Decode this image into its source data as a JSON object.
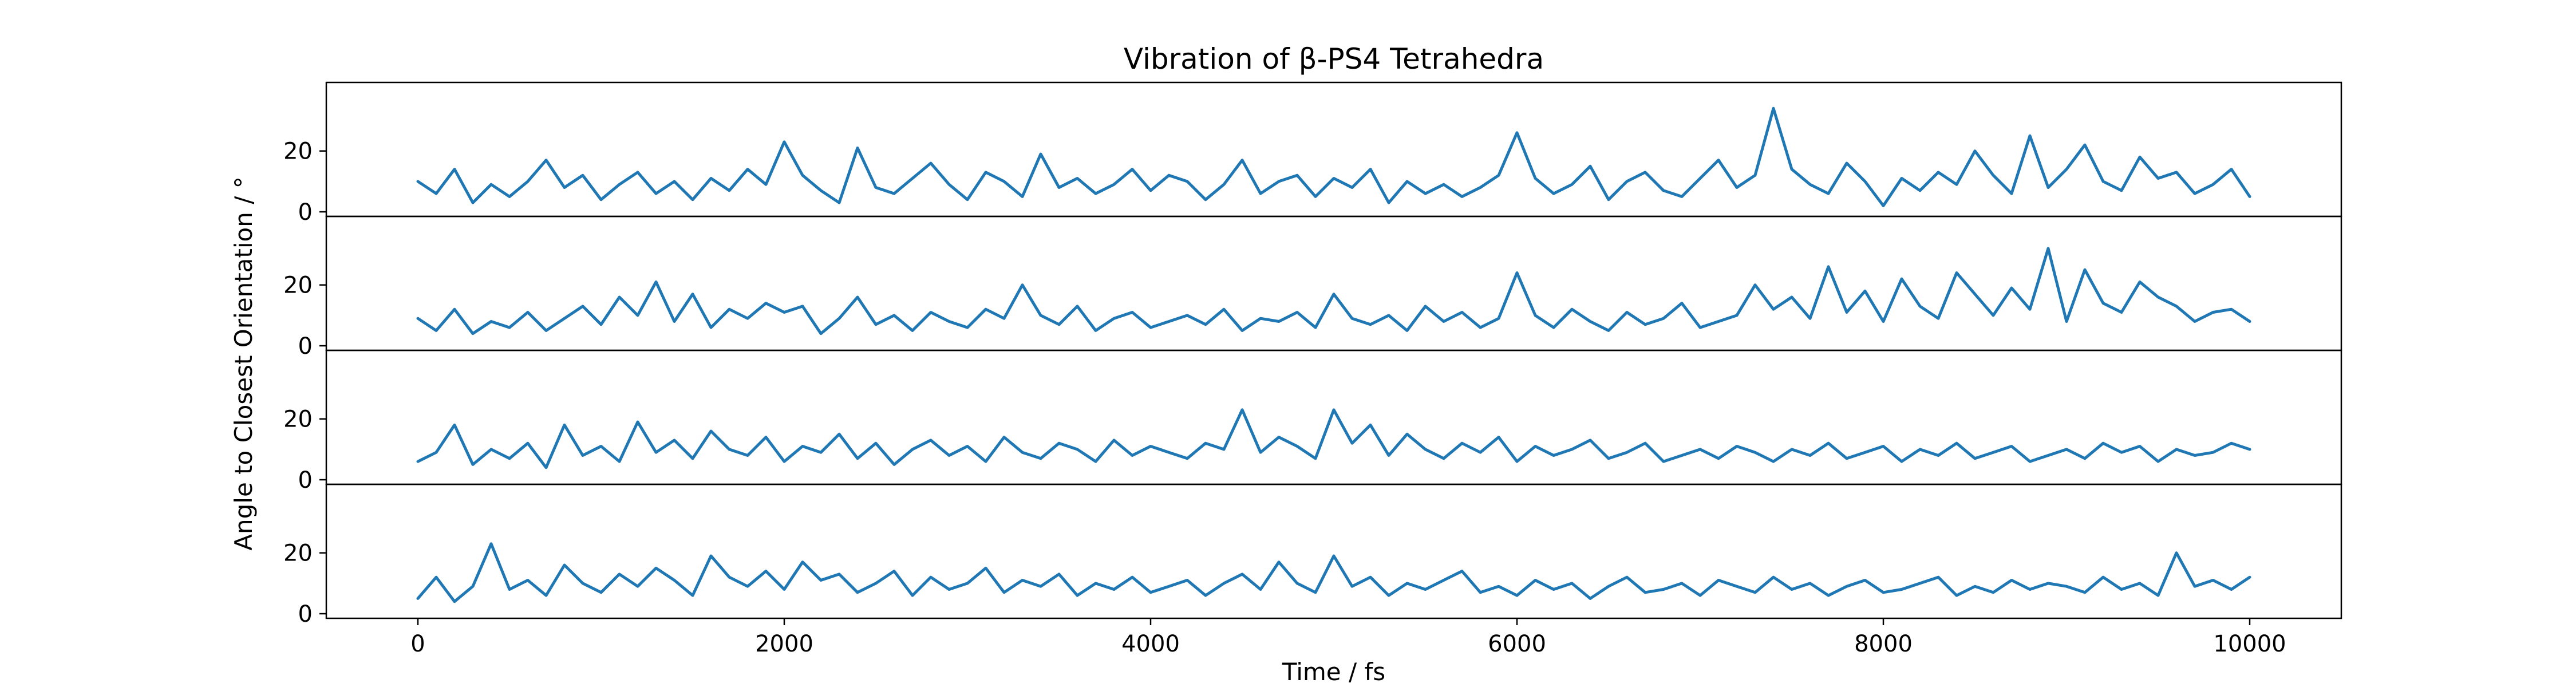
{
  "chart_data": {
    "type": "line",
    "title": "Vibration of β-PS4 Tetrahedra",
    "xlabel": "Time / fs",
    "ylabel": "Angle to Closest Orientation / °",
    "x_range": [
      0,
      10000
    ],
    "xlim": [
      -500,
      10500
    ],
    "ylim": [
      0,
      35
    ],
    "x_ticks": [
      0,
      2000,
      4000,
      6000,
      8000,
      10000
    ],
    "x_tick_labels": [
      "0",
      "2000",
      "4000",
      "6000",
      "8000",
      "10000"
    ],
    "y_ticks": [
      0,
      20
    ],
    "y_tick_labels": [
      "0",
      "20"
    ],
    "grid": false,
    "legend": "none",
    "line_color": "#1f77b4",
    "panels": [
      {
        "x": [
          0,
          100,
          200,
          300,
          400,
          500,
          600,
          700,
          800,
          900,
          1000,
          1100,
          1200,
          1300,
          1400,
          1500,
          1600,
          1700,
          1800,
          1900,
          2000,
          2100,
          2200,
          2300,
          2400,
          2500,
          2600,
          2700,
          2800,
          2900,
          3000,
          3100,
          3200,
          3300,
          3400,
          3500,
          3600,
          3700,
          3800,
          3900,
          4000,
          4100,
          4200,
          4300,
          4400,
          4500,
          4600,
          4700,
          4800,
          4900,
          5000,
          5100,
          5200,
          5300,
          5400,
          5500,
          5600,
          5700,
          5800,
          5900,
          6000,
          6100,
          6200,
          6300,
          6400,
          6500,
          6600,
          6700,
          6800,
          6900,
          7000,
          7100,
          7200,
          7300,
          7400,
          7500,
          7600,
          7700,
          7800,
          7900,
          8000,
          8100,
          8200,
          8300,
          8400,
          8500,
          8600,
          8700,
          8800,
          8900,
          9000,
          9100,
          9200,
          9300,
          9400,
          9500,
          9600,
          9700,
          9800,
          9900,
          10000
        ],
        "values": [
          10,
          6,
          14,
          3,
          9,
          5,
          10,
          17,
          8,
          12,
          4,
          9,
          13,
          6,
          10,
          4,
          11,
          7,
          14,
          9,
          23,
          12,
          7,
          3,
          21,
          8,
          6,
          11,
          16,
          9,
          4,
          13,
          10,
          5,
          19,
          8,
          11,
          6,
          9,
          14,
          7,
          12,
          10,
          4,
          9,
          17,
          6,
          10,
          12,
          5,
          11,
          8,
          14,
          3,
          10,
          6,
          9,
          5,
          8,
          12,
          26,
          11,
          6,
          9,
          15,
          4,
          10,
          13,
          7,
          5,
          11,
          17,
          8,
          12,
          34,
          14,
          9,
          6,
          16,
          10,
          2,
          11,
          7,
          13,
          9,
          20,
          12,
          6,
          25,
          8,
          14,
          22,
          10,
          7,
          18,
          11,
          13,
          6,
          9,
          14,
          5
        ]
      },
      {
        "x": [
          0,
          100,
          200,
          300,
          400,
          500,
          600,
          700,
          800,
          900,
          1000,
          1100,
          1200,
          1300,
          1400,
          1500,
          1600,
          1700,
          1800,
          1900,
          2000,
          2100,
          2200,
          2300,
          2400,
          2500,
          2600,
          2700,
          2800,
          2900,
          3000,
          3100,
          3200,
          3300,
          3400,
          3500,
          3600,
          3700,
          3800,
          3900,
          4000,
          4100,
          4200,
          4300,
          4400,
          4500,
          4600,
          4700,
          4800,
          4900,
          5000,
          5100,
          5200,
          5300,
          5400,
          5500,
          5600,
          5700,
          5800,
          5900,
          6000,
          6100,
          6200,
          6300,
          6400,
          6500,
          6600,
          6700,
          6800,
          6900,
          7000,
          7100,
          7200,
          7300,
          7400,
          7500,
          7600,
          7700,
          7800,
          7900,
          8000,
          8100,
          8200,
          8300,
          8400,
          8500,
          8600,
          8700,
          8800,
          8900,
          9000,
          9100,
          9200,
          9300,
          9400,
          9500,
          9600,
          9700,
          9800,
          9900,
          10000
        ],
        "values": [
          9,
          5,
          12,
          4,
          8,
          6,
          11,
          5,
          9,
          13,
          7,
          16,
          10,
          21,
          8,
          17,
          6,
          12,
          9,
          14,
          11,
          13,
          4,
          9,
          16,
          7,
          10,
          5,
          11,
          8,
          6,
          12,
          9,
          20,
          10,
          7,
          13,
          5,
          9,
          11,
          6,
          8,
          10,
          7,
          12,
          5,
          9,
          8,
          11,
          6,
          17,
          9,
          7,
          10,
          5,
          13,
          8,
          11,
          6,
          9,
          24,
          10,
          6,
          12,
          8,
          5,
          11,
          7,
          9,
          14,
          6,
          8,
          10,
          20,
          12,
          16,
          9,
          26,
          11,
          18,
          8,
          22,
          13,
          9,
          24,
          17,
          10,
          19,
          12,
          32,
          8,
          25,
          14,
          11,
          21,
          16,
          13,
          8,
          11,
          12,
          8
        ]
      },
      {
        "x": [
          0,
          100,
          200,
          300,
          400,
          500,
          600,
          700,
          800,
          900,
          1000,
          1100,
          1200,
          1300,
          1400,
          1500,
          1600,
          1700,
          1800,
          1900,
          2000,
          2100,
          2200,
          2300,
          2400,
          2500,
          2600,
          2700,
          2800,
          2900,
          3000,
          3100,
          3200,
          3300,
          3400,
          3500,
          3600,
          3700,
          3800,
          3900,
          4000,
          4100,
          4200,
          4300,
          4400,
          4500,
          4600,
          4700,
          4800,
          4900,
          5000,
          5100,
          5200,
          5300,
          5400,
          5500,
          5600,
          5700,
          5800,
          5900,
          6000,
          6100,
          6200,
          6300,
          6400,
          6500,
          6600,
          6700,
          6800,
          6900,
          7000,
          7100,
          7200,
          7300,
          7400,
          7500,
          7600,
          7700,
          7800,
          7900,
          8000,
          8100,
          8200,
          8300,
          8400,
          8500,
          8600,
          8700,
          8800,
          8900,
          9000,
          9100,
          9200,
          9300,
          9400,
          9500,
          9600,
          9700,
          9800,
          9900,
          10000
        ],
        "values": [
          6,
          9,
          18,
          5,
          10,
          7,
          12,
          4,
          18,
          8,
          11,
          6,
          19,
          9,
          13,
          7,
          16,
          10,
          8,
          14,
          6,
          11,
          9,
          15,
          7,
          12,
          5,
          10,
          13,
          8,
          11,
          6,
          14,
          9,
          7,
          12,
          10,
          6,
          13,
          8,
          11,
          9,
          7,
          12,
          10,
          23,
          9,
          14,
          11,
          7,
          23,
          12,
          18,
          8,
          15,
          10,
          7,
          12,
          9,
          14,
          6,
          11,
          8,
          10,
          13,
          7,
          9,
          12,
          6,
          8,
          10,
          7,
          11,
          9,
          6,
          10,
          8,
          12,
          7,
          9,
          11,
          6,
          10,
          8,
          12,
          7,
          9,
          11,
          6,
          8,
          10,
          7,
          12,
          9,
          11,
          6,
          10,
          8,
          9,
          12,
          10
        ]
      },
      {
        "x": [
          0,
          100,
          200,
          300,
          400,
          500,
          600,
          700,
          800,
          900,
          1000,
          1100,
          1200,
          1300,
          1400,
          1500,
          1600,
          1700,
          1800,
          1900,
          2000,
          2100,
          2200,
          2300,
          2400,
          2500,
          2600,
          2700,
          2800,
          2900,
          3000,
          3100,
          3200,
          3300,
          3400,
          3500,
          3600,
          3700,
          3800,
          3900,
          4000,
          4100,
          4200,
          4300,
          4400,
          4500,
          4600,
          4700,
          4800,
          4900,
          5000,
          5100,
          5200,
          5300,
          5400,
          5500,
          5600,
          5700,
          5800,
          5900,
          6000,
          6100,
          6200,
          6300,
          6400,
          6500,
          6600,
          6700,
          6800,
          6900,
          7000,
          7100,
          7200,
          7300,
          7400,
          7500,
          7600,
          7700,
          7800,
          7900,
          8000,
          8100,
          8200,
          8300,
          8400,
          8500,
          8600,
          8700,
          8800,
          8900,
          9000,
          9100,
          9200,
          9300,
          9400,
          9500,
          9600,
          9700,
          9800,
          9900,
          10000
        ],
        "values": [
          5,
          12,
          4,
          9,
          23,
          8,
          11,
          6,
          16,
          10,
          7,
          13,
          9,
          15,
          11,
          6,
          19,
          12,
          9,
          14,
          8,
          17,
          11,
          13,
          7,
          10,
          14,
          6,
          12,
          8,
          10,
          15,
          7,
          11,
          9,
          13,
          6,
          10,
          8,
          12,
          7,
          9,
          11,
          6,
          10,
          13,
          8,
          17,
          10,
          7,
          19,
          9,
          12,
          6,
          10,
          8,
          11,
          14,
          7,
          9,
          6,
          11,
          8,
          10,
          5,
          9,
          12,
          7,
          8,
          10,
          6,
          11,
          9,
          7,
          12,
          8,
          10,
          6,
          9,
          11,
          7,
          8,
          10,
          12,
          6,
          9,
          7,
          11,
          8,
          10,
          9,
          7,
          12,
          8,
          10,
          6,
          20,
          9,
          11,
          8,
          12
        ]
      }
    ]
  }
}
